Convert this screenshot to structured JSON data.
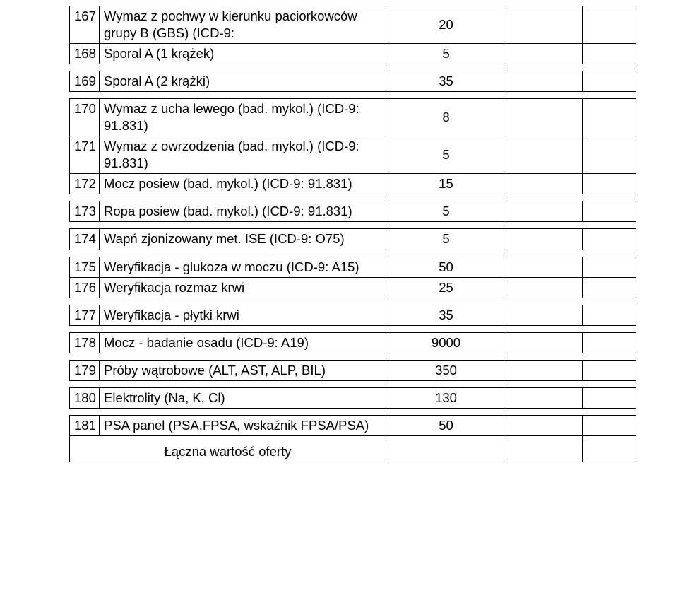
{
  "table": {
    "background": "#ffffff",
    "border_color": "#000000",
    "font_size": 18.5,
    "text_color": "#000000",
    "rows": [
      {
        "num": "167",
        "desc": "Wymaz z pochwy w kierunku paciorkowców grupy B (GBS) (ICD-9:",
        "val": "20"
      },
      {
        "num": "168",
        "desc": "Sporal A (1 krążek)",
        "val": "5"
      },
      {
        "num": "169",
        "desc": "Sporal A (2 krążki)",
        "val": "35"
      },
      {
        "num": "170",
        "desc": "Wymaz z ucha lewego (bad. mykol.) (ICD-9: 91.831)",
        "val": "8"
      },
      {
        "num": "171",
        "desc": "Wymaz z owrzodzenia (bad. mykol.) (ICD-9: 91.831)",
        "val": "5"
      },
      {
        "num": "172",
        "desc": "Mocz posiew (bad. mykol.) (ICD-9: 91.831)",
        "val": "15"
      },
      {
        "num": "173",
        "desc": "Ropa posiew (bad. mykol.) (ICD-9: 91.831)",
        "val": "5"
      },
      {
        "num": "174",
        "desc": "Wapń zjonizowany met. ISE (ICD-9: O75)",
        "val": "5"
      },
      {
        "num": "175",
        "desc": "Weryfikacja - glukoza w moczu (ICD-9: A15)",
        "val": "50"
      },
      {
        "num": "176",
        "desc": "Weryfikacja rozmaz krwi",
        "val": "25"
      },
      {
        "num": "177",
        "desc": "Weryfikacja - płytki krwi",
        "val": "35"
      },
      {
        "num": "178",
        "desc": "Mocz - badanie osadu (ICD-9: A19)",
        "val": "9000"
      },
      {
        "num": "179",
        "desc": "Próby wątrobowe (ALT, AST, ALP, BIL)",
        "val": "350"
      },
      {
        "num": "180",
        "desc": "Elektrolity (Na, K, Cl)",
        "val": "130"
      },
      {
        "num": "181",
        "desc": "PSA panel (PSA,FPSA, wskaźnik FPSA/PSA)",
        "val": "50"
      }
    ],
    "total_label": "Łączna wartość oferty",
    "groups": [
      [
        0,
        1
      ],
      [
        2
      ],
      [
        3,
        4,
        5
      ],
      [
        6
      ],
      [
        7
      ],
      [
        8,
        9
      ],
      [
        10
      ],
      [
        11
      ],
      [
        12
      ],
      [
        13
      ],
      [
        14
      ]
    ]
  }
}
